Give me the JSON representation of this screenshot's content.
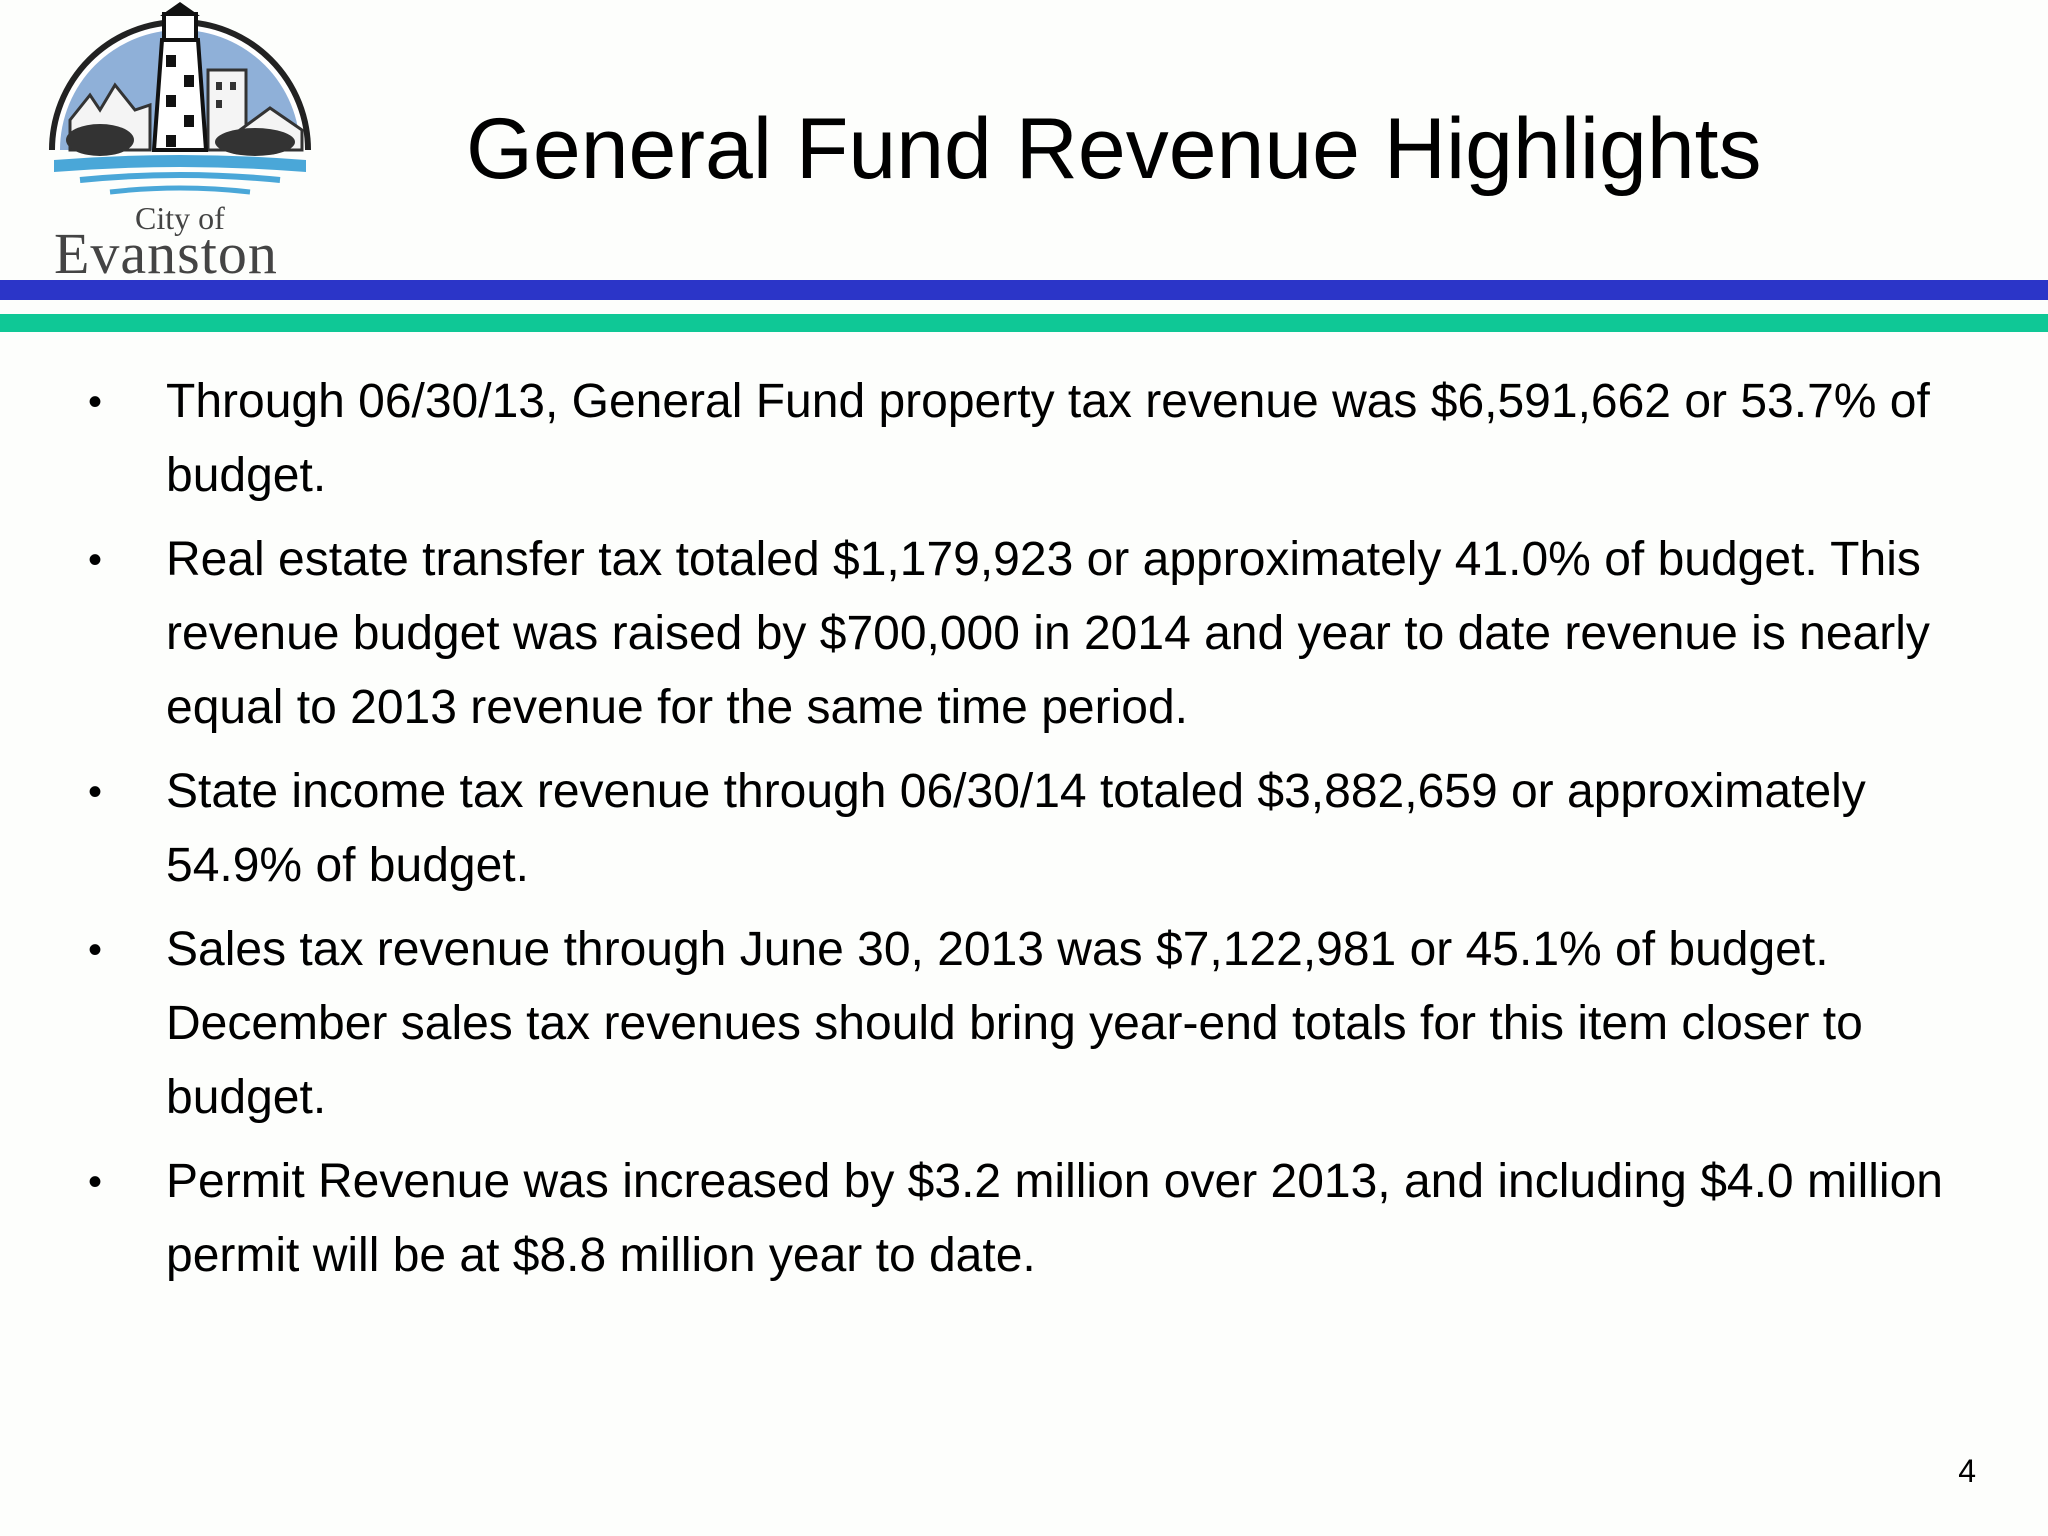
{
  "slide": {
    "title": "General Fund Revenue Highlights",
    "page_number": "4"
  },
  "logo": {
    "line1": "City of",
    "line2": "Evanston"
  },
  "colors": {
    "rule_top": "#2b35c8",
    "rule_bottom": "#0fc896"
  },
  "bullets": [
    {
      "symbol": "•",
      "text": "Through 06/30/13, General Fund property tax revenue was $6,591,662 or 53.7% of budget."
    },
    {
      "symbol": "•",
      "text": "Real estate transfer tax totaled $1,179,923 or approximately 41.0% of budget. This revenue budget was raised by $700,000 in 2014 and year to date revenue is nearly equal to 2013 revenue for the same time period."
    },
    {
      "symbol": "•",
      "text": "State income tax revenue through 06/30/14 totaled $3,882,659 or approximately 54.9% of budget."
    },
    {
      "symbol": "•",
      "text": "Sales tax revenue through June 30, 2013 was $7,122,981 or 45.1% of budget. December sales tax revenues should bring year-end totals for this item closer to budget."
    },
    {
      "symbol": "•",
      "text": "Permit Revenue was increased by $3.2 million over 2013, and including $4.0 million permit will be at $8.8 million year to date."
    }
  ]
}
